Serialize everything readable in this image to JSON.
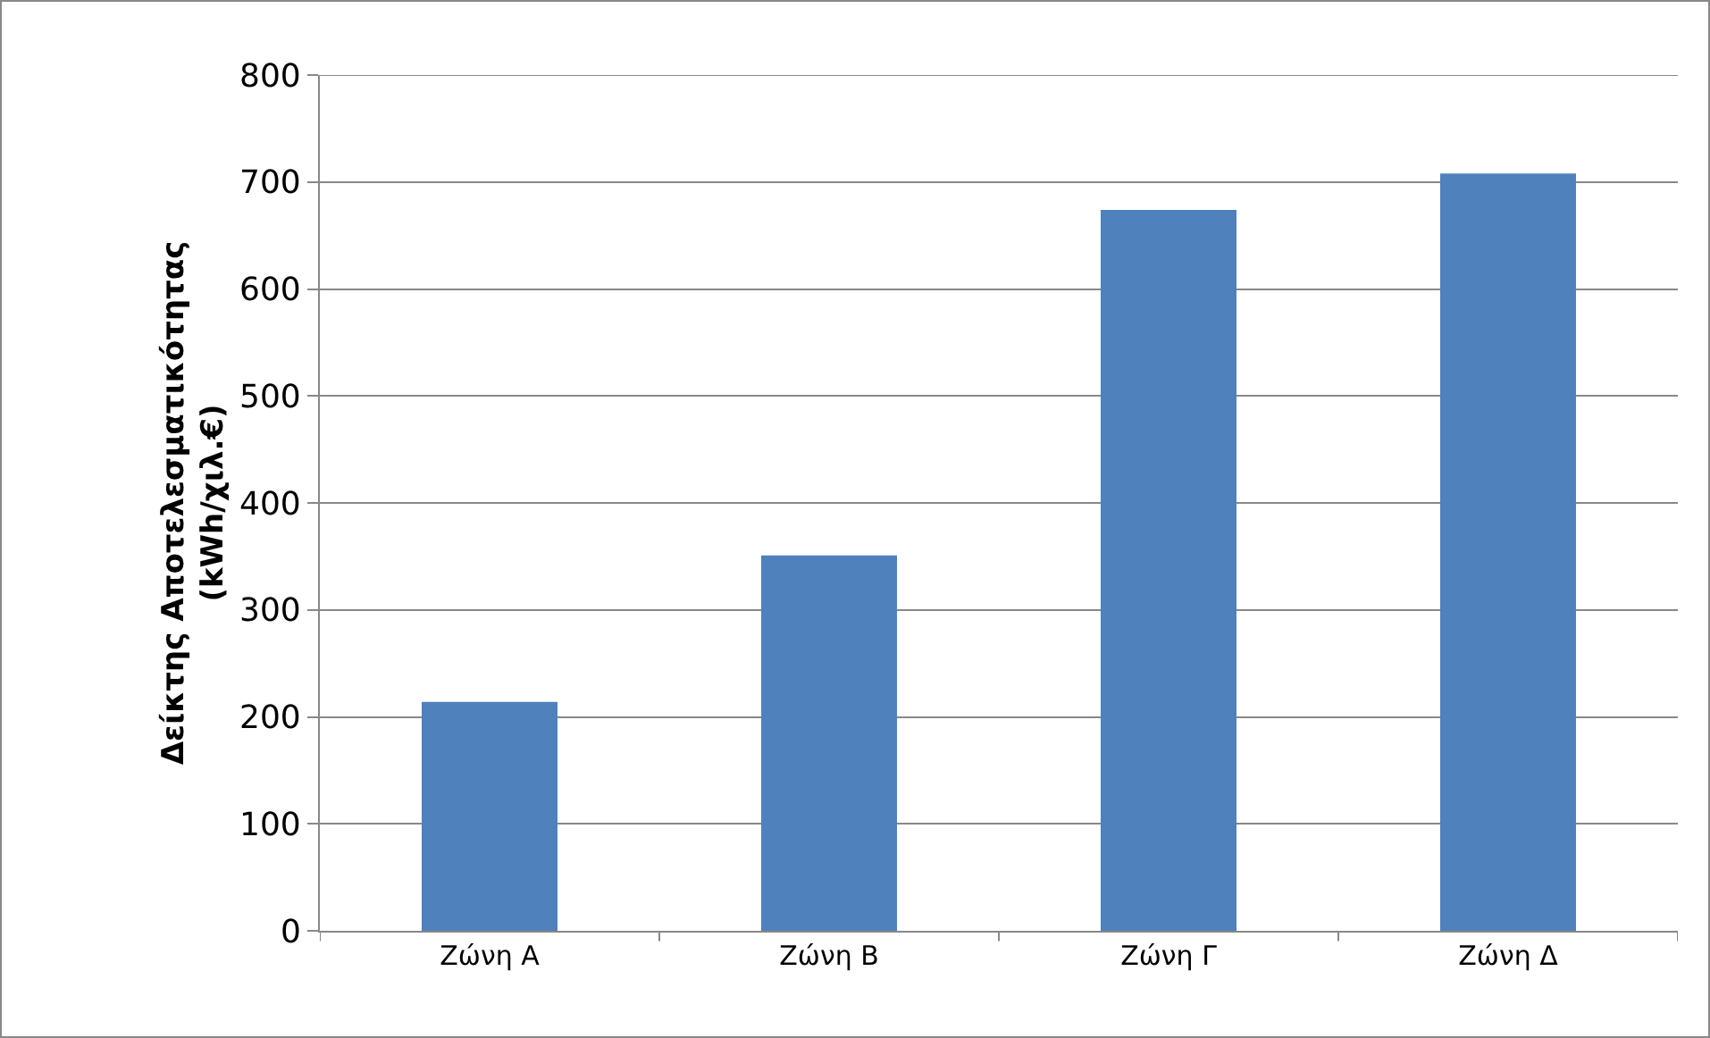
{
  "chart_data": {
    "type": "bar",
    "ylabel": "Δείκτης Αποτελεσματικότητας\n(kWh/χιλ.€)",
    "categories": [
      "Ζώνη Α",
      "Ζώνη Β",
      "Ζώνη Γ",
      "Ζώνη Δ"
    ],
    "values": [
      214,
      351,
      674,
      708
    ],
    "color": "#4f81bd",
    "ylim": [
      0,
      800
    ],
    "yticks": [
      0,
      100,
      200,
      300,
      400,
      500,
      600,
      700,
      800
    ],
    "grid": "y"
  }
}
